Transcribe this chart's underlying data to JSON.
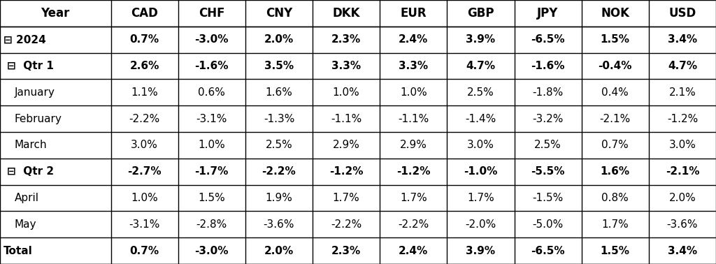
{
  "columns": [
    "Year",
    "CAD",
    "CHF",
    "CNY",
    "DKK",
    "EUR",
    "GBP",
    "JPY",
    "NOK",
    "USD"
  ],
  "rows": [
    {
      "label": "⊟ 2024",
      "indent": 0,
      "bold": true,
      "values": [
        "0.7%",
        "-3.0%",
        "2.0%",
        "2.3%",
        "2.4%",
        "3.9%",
        "-6.5%",
        "1.5%",
        "3.4%"
      ]
    },
    {
      "label": "⊟  Qtr 1",
      "indent": 1,
      "bold": true,
      "values": [
        "2.6%",
        "-1.6%",
        "3.5%",
        "3.3%",
        "3.3%",
        "4.7%",
        "-1.6%",
        "-0.4%",
        "4.7%"
      ]
    },
    {
      "label": "January",
      "indent": 2,
      "bold": false,
      "values": [
        "1.1%",
        "0.6%",
        "1.6%",
        "1.0%",
        "1.0%",
        "2.5%",
        "-1.8%",
        "0.4%",
        "2.1%"
      ]
    },
    {
      "label": "February",
      "indent": 2,
      "bold": false,
      "values": [
        "-2.2%",
        "-3.1%",
        "-1.3%",
        "-1.1%",
        "-1.1%",
        "-1.4%",
        "-3.2%",
        "-2.1%",
        "-1.2%"
      ]
    },
    {
      "label": "March",
      "indent": 2,
      "bold": false,
      "values": [
        "3.0%",
        "1.0%",
        "2.5%",
        "2.9%",
        "2.9%",
        "3.0%",
        "2.5%",
        "0.7%",
        "3.0%"
      ]
    },
    {
      "label": "⊟  Qtr 2",
      "indent": 1,
      "bold": true,
      "values": [
        "-2.7%",
        "-1.7%",
        "-2.2%",
        "-1.2%",
        "-1.2%",
        "-1.0%",
        "-5.5%",
        "1.6%",
        "-2.1%"
      ]
    },
    {
      "label": "April",
      "indent": 2,
      "bold": false,
      "values": [
        "1.0%",
        "1.5%",
        "1.9%",
        "1.7%",
        "1.7%",
        "1.7%",
        "-1.5%",
        "0.8%",
        "2.0%"
      ]
    },
    {
      "label": "May",
      "indent": 2,
      "bold": false,
      "values": [
        "-3.1%",
        "-2.8%",
        "-3.6%",
        "-2.2%",
        "-2.2%",
        "-2.0%",
        "-5.0%",
        "1.7%",
        "-3.6%"
      ]
    },
    {
      "label": "Total",
      "indent": 0,
      "bold": true,
      "values": [
        "0.7%",
        "-3.0%",
        "2.0%",
        "2.3%",
        "2.4%",
        "3.9%",
        "-6.5%",
        "1.5%",
        "3.4%"
      ]
    }
  ],
  "bg_color": "#ffffff",
  "header_bg": "#ffffff",
  "text_color": "#000000",
  "border_color": "#000000",
  "font_size": 11,
  "header_font_size": 12
}
